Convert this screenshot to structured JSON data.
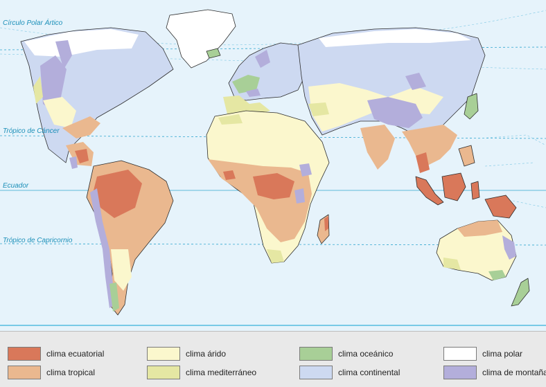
{
  "map": {
    "lines": {
      "polar_circle": "Círculo Polar Ártico",
      "tropic_cancer": "Trópico de Cáncer",
      "equator": "Ecuador",
      "tropic_capricorn": "Trópico de Capricornio"
    },
    "colors": {
      "ocean": "#e6f3fb",
      "land_base": "#f7f2c6",
      "equatorial": "#d9785a",
      "tropical": "#eab88f",
      "arid": "#fbf7cd",
      "mediterranean": "#e5e7a3",
      "oceanic": "#a8cf97",
      "continental": "#cdd9f1",
      "polar": "#ffffff",
      "mountain": "#b3aedb"
    }
  },
  "legend": {
    "items": [
      {
        "label": "clima ecuatorial",
        "color": "#d9785a"
      },
      {
        "label": "clima tropical",
        "color": "#eab88f"
      },
      {
        "label": "clima árido",
        "color": "#fbf7cd"
      },
      {
        "label": "clima mediterráneo",
        "color": "#e5e7a3"
      },
      {
        "label": "clima oceánico",
        "color": "#a8cf97"
      },
      {
        "label": "clima continental",
        "color": "#cdd9f1"
      },
      {
        "label": "clima polar",
        "color": "#ffffff"
      },
      {
        "label": "clima de montaña",
        "color": "#b3aedb"
      }
    ]
  }
}
